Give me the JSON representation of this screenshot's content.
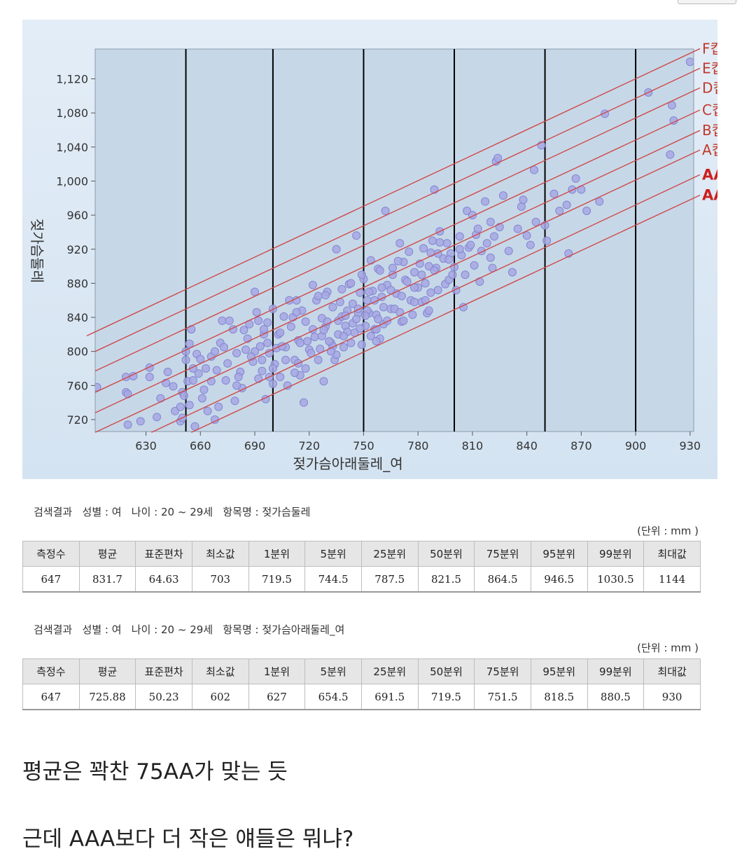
{
  "chart_data": {
    "type": "scatter",
    "xlabel": "젖가슴아래둘레_여",
    "ylabel": "젖가슴둘레",
    "xlim": [
      602,
      932
    ],
    "ylim": [
      706,
      1155
    ],
    "x_ticks": [
      630,
      660,
      690,
      720,
      750,
      780,
      810,
      840,
      870,
      900,
      930
    ],
    "y_ticks": [
      720,
      760,
      800,
      840,
      880,
      920,
      960,
      1000,
      1040,
      1080,
      1120
    ],
    "vertical_lines_x": [
      652,
      700,
      750,
      800,
      850,
      900
    ],
    "cup_lines": [
      {
        "label": "F컵",
        "bold": false,
        "x1": 602,
        "y1": 823,
        "x2": 932,
        "y2": 1152
      },
      {
        "label": "E컵",
        "bold": false,
        "x1": 602,
        "y1": 800,
        "x2": 932,
        "y2": 1129
      },
      {
        "label": "D컵",
        "bold": false,
        "x1": 602,
        "y1": 777,
        "x2": 932,
        "y2": 1106
      },
      {
        "label": "C컵",
        "bold": false,
        "x1": 602,
        "y1": 752,
        "x2": 932,
        "y2": 1080
      },
      {
        "label": "B컵",
        "bold": false,
        "x1": 602,
        "y1": 728,
        "x2": 932,
        "y2": 1056
      },
      {
        "label": "A컵",
        "bold": false,
        "x1": 602,
        "y1": 705,
        "x2": 932,
        "y2": 1033
      },
      {
        "label": "AA",
        "bold": true,
        "x1": 633,
        "y1": 705,
        "x2": 932,
        "y2": 1004
      },
      {
        "label": "AAA",
        "bold": true,
        "x1": 655,
        "y1": 705,
        "x2": 932,
        "y2": 980
      }
    ],
    "points": [
      [
        603,
        758
      ],
      [
        619,
        770
      ],
      [
        619,
        752
      ],
      [
        620,
        750
      ],
      [
        620,
        714
      ],
      [
        623,
        771
      ],
      [
        627,
        718
      ],
      [
        632,
        770
      ],
      [
        632,
        781
      ],
      [
        636,
        723
      ],
      [
        638,
        745
      ],
      [
        641,
        763
      ],
      [
        642,
        776
      ],
      [
        645,
        759
      ],
      [
        646,
        730
      ],
      [
        649,
        718
      ],
      [
        649,
        735
      ],
      [
        650,
        752
      ],
      [
        650,
        722
      ],
      [
        651,
        748
      ],
      [
        652,
        800
      ],
      [
        652,
        790
      ],
      [
        653,
        765
      ],
      [
        654,
        737
      ],
      [
        654,
        809
      ],
      [
        655,
        826
      ],
      [
        656,
        780
      ],
      [
        656,
        766
      ],
      [
        657,
        712
      ],
      [
        658,
        797
      ],
      [
        659,
        774
      ],
      [
        660,
        791
      ],
      [
        661,
        745
      ],
      [
        662,
        755
      ],
      [
        664,
        730
      ],
      [
        666,
        794
      ],
      [
        668,
        720
      ],
      [
        669,
        778
      ],
      [
        670,
        735
      ],
      [
        671,
        810
      ],
      [
        672,
        836
      ],
      [
        674,
        766
      ],
      [
        676,
        836
      ],
      [
        678,
        826
      ],
      [
        680,
        798
      ],
      [
        682,
        776
      ],
      [
        683,
        757
      ],
      [
        685,
        802
      ],
      [
        687,
        832
      ],
      [
        689,
        788
      ],
      [
        690,
        870
      ],
      [
        691,
        846
      ],
      [
        692,
        768
      ],
      [
        693,
        806
      ],
      [
        694,
        777
      ],
      [
        695,
        820
      ],
      [
        696,
        744
      ],
      [
        697,
        834
      ],
      [
        698,
        798
      ],
      [
        700,
        850
      ],
      [
        701,
        785
      ],
      [
        703,
        820
      ],
      [
        704,
        770
      ],
      [
        706,
        841
      ],
      [
        707,
        805
      ],
      [
        708,
        760
      ],
      [
        710,
        829
      ],
      [
        712,
        790
      ],
      [
        713,
        860
      ],
      [
        714,
        813
      ],
      [
        715,
        772
      ],
      [
        716,
        848
      ],
      [
        717,
        740
      ],
      [
        718,
        835
      ],
      [
        720,
        802
      ],
      [
        722,
        878
      ],
      [
        723,
        817
      ],
      [
        724,
        860
      ],
      [
        725,
        790
      ],
      [
        727,
        839
      ],
      [
        728,
        765
      ],
      [
        729,
        829
      ],
      [
        730,
        870
      ],
      [
        732,
        810
      ],
      [
        733,
        852
      ],
      [
        734,
        790
      ],
      [
        735,
        920
      ],
      [
        736,
        836
      ],
      [
        738,
        873
      ],
      [
        739,
        805
      ],
      [
        740,
        830
      ],
      [
        741,
        848
      ],
      [
        742,
        879
      ],
      [
        743,
        810
      ],
      [
        744,
        856
      ],
      [
        745,
        822
      ],
      [
        746,
        936
      ],
      [
        747,
        845
      ],
      [
        748,
        869
      ],
      [
        749,
        808
      ],
      [
        750,
        885
      ],
      [
        751,
        830
      ],
      [
        752,
        860
      ],
      [
        753,
        845
      ],
      [
        754,
        907
      ],
      [
        755,
        871
      ],
      [
        756,
        826
      ],
      [
        757,
        843
      ],
      [
        758,
        897
      ],
      [
        759,
        815
      ],
      [
        760,
        864
      ],
      [
        761,
        832
      ],
      [
        762,
        965
      ],
      [
        763,
        878
      ],
      [
        765,
        850
      ],
      [
        766,
        890
      ],
      [
        768,
        868
      ],
      [
        770,
        927
      ],
      [
        771,
        835
      ],
      [
        772,
        905
      ],
      [
        773,
        884
      ],
      [
        775,
        917
      ],
      [
        776,
        860
      ],
      [
        777,
        843
      ],
      [
        778,
        893
      ],
      [
        780,
        875
      ],
      [
        781,
        903
      ],
      [
        782,
        858
      ],
      [
        783,
        921
      ],
      [
        784,
        880
      ],
      [
        785,
        845
      ],
      [
        786,
        900
      ],
      [
        787,
        869
      ],
      [
        788,
        930
      ],
      [
        789,
        990
      ],
      [
        790,
        898
      ],
      [
        791,
        872
      ],
      [
        792,
        941
      ],
      [
        794,
        909
      ],
      [
        795,
        879
      ],
      [
        796,
        927
      ],
      [
        797,
        884
      ],
      [
        798,
        915
      ],
      [
        800,
        899
      ],
      [
        801,
        872
      ],
      [
        803,
        935
      ],
      [
        804,
        913
      ],
      [
        805,
        852
      ],
      [
        806,
        890
      ],
      [
        807,
        965
      ],
      [
        808,
        922
      ],
      [
        810,
        960
      ],
      [
        811,
        901
      ],
      [
        812,
        937
      ],
      [
        814,
        882
      ],
      [
        815,
        918
      ],
      [
        817,
        976
      ],
      [
        818,
        927
      ],
      [
        820,
        952
      ],
      [
        821,
        898
      ],
      [
        822,
        935
      ],
      [
        823,
        1023
      ],
      [
        824,
        1027
      ],
      [
        825,
        946
      ],
      [
        827,
        983
      ],
      [
        830,
        918
      ],
      [
        832,
        893
      ],
      [
        835,
        944
      ],
      [
        837,
        970
      ],
      [
        838,
        978
      ],
      [
        840,
        936
      ],
      [
        842,
        925
      ],
      [
        844,
        1013
      ],
      [
        845,
        952
      ],
      [
        848,
        1042
      ],
      [
        850,
        948
      ],
      [
        851,
        930
      ],
      [
        855,
        985
      ],
      [
        858,
        965
      ],
      [
        862,
        972
      ],
      [
        863,
        915
      ],
      [
        865,
        990
      ],
      [
        867,
        1003
      ],
      [
        870,
        990
      ],
      [
        873,
        965
      ],
      [
        880,
        976
      ],
      [
        883,
        1079
      ],
      [
        907,
        1104
      ],
      [
        919,
        1031
      ],
      [
        920,
        1089
      ],
      [
        921,
        1071
      ],
      [
        930,
        1140
      ],
      [
        668,
        800
      ],
      [
        712,
        775
      ],
      [
        726,
        803
      ],
      [
        744,
        833
      ],
      [
        757,
        812
      ],
      [
        767,
        850
      ],
      [
        778,
        858
      ],
      [
        704,
        822
      ],
      [
        736,
        820
      ],
      [
        748,
        827
      ],
      [
        763,
        836
      ],
      [
        686,
        815
      ],
      [
        694,
        790
      ],
      [
        715,
        810
      ],
      [
        727,
        818
      ],
      [
        738,
        841
      ],
      [
        752,
        848
      ],
      [
        707,
        790
      ],
      [
        721,
        798
      ],
      [
        733,
        806
      ],
      [
        741,
        823
      ],
      [
        758,
        838
      ],
      [
        680,
        760
      ],
      [
        700,
        780
      ],
      [
        719,
        812
      ],
      [
        731,
        812
      ],
      [
        746,
        838
      ],
      [
        756,
        860
      ],
      [
        771,
        865
      ],
      [
        690,
        800
      ],
      [
        722,
        826
      ],
      [
        740,
        842
      ],
      [
        760,
        875
      ],
      [
        782,
        890
      ],
      [
        797,
        908
      ],
      [
        809,
        925
      ],
      [
        675,
        786
      ],
      [
        702,
        804
      ],
      [
        730,
        835
      ],
      [
        765,
        872
      ],
      [
        789,
        895
      ],
      [
        673,
        805
      ],
      [
        695,
        826
      ],
      [
        711,
        840
      ],
      [
        737,
        858
      ],
      [
        753,
        870
      ],
      [
        774,
        882
      ],
      [
        791,
        915
      ],
      [
        803,
        920
      ],
      [
        663,
        780
      ],
      [
        681,
        770
      ],
      [
        697,
        810
      ],
      [
        739,
        818
      ],
      [
        751,
        842
      ],
      [
        770,
        846
      ],
      [
        784,
        860
      ],
      [
        700,
        762
      ],
      [
        718,
        780
      ],
      [
        735,
        796
      ],
      [
        754,
        818
      ],
      [
        759,
        895
      ],
      [
        666,
        765
      ],
      [
        688,
        794
      ],
      [
        705,
        806
      ],
      [
        728,
        825
      ],
      [
        747,
        850
      ],
      [
        761,
        852
      ],
      [
        778,
        875
      ],
      [
        799,
        890
      ],
      [
        820,
        910
      ],
      [
        684,
        825
      ],
      [
        713,
        846
      ],
      [
        729,
        866
      ],
      [
        743,
        880
      ],
      [
        766,
        898
      ],
      [
        787,
        916
      ],
      [
        813,
        944
      ],
      [
        692,
        836
      ],
      [
        709,
        860
      ],
      [
        725,
        865
      ],
      [
        749,
        890
      ],
      [
        769,
        906
      ],
      [
        792,
        928
      ],
      [
        679,
        742
      ],
      [
        698,
        770
      ],
      [
        714,
        786
      ],
      [
        732,
        800
      ],
      [
        757,
        826
      ],
      [
        772,
        836
      ],
      [
        786,
        848
      ]
    ]
  },
  "stats": [
    {
      "caption": {
        "label": "검색결과",
        "text": "성별 : 여   나이 : 20 ~ 29세   항목명 : 젖가슴둘레"
      },
      "unit": "(단위 : mm )",
      "headers": [
        "측정수",
        "평균",
        "표준편차",
        "최소값",
        "1분위",
        "5분위",
        "25분위",
        "50분위",
        "75분위",
        "95분위",
        "99분위",
        "최대값"
      ],
      "values": [
        "647",
        "831.7",
        "64.63",
        "703",
        "719.5",
        "744.5",
        "787.5",
        "821.5",
        "864.5",
        "946.5",
        "1030.5",
        "1144"
      ]
    },
    {
      "caption": {
        "label": "검색결과",
        "text": "성별 : 여   나이 : 20 ~ 29세   항목명 : 젖가슴아래둘레_여"
      },
      "unit": "(단위 : mm )",
      "headers": [
        "측정수",
        "평균",
        "표준편차",
        "최소값",
        "1분위",
        "5분위",
        "25분위",
        "50분위",
        "75분위",
        "95분위",
        "99분위",
        "최대값"
      ],
      "values": [
        "647",
        "725.88",
        "50.23",
        "602",
        "627",
        "654.5",
        "691.5",
        "719.5",
        "751.5",
        "818.5",
        "880.5",
        "930"
      ]
    }
  ],
  "post": {
    "line1": "평균은 꽉찬 75AA가 맞는 듯",
    "line2": "근데 AAA보다 더 작은 얘들은 뭐냐?"
  },
  "colors": {
    "plot_background": "#c6d8e8",
    "outer_background": "#dde9f4",
    "cup_line": "#cf4a4a",
    "point_fill": "#a7a8e2",
    "point_stroke": "#8486d3"
  }
}
